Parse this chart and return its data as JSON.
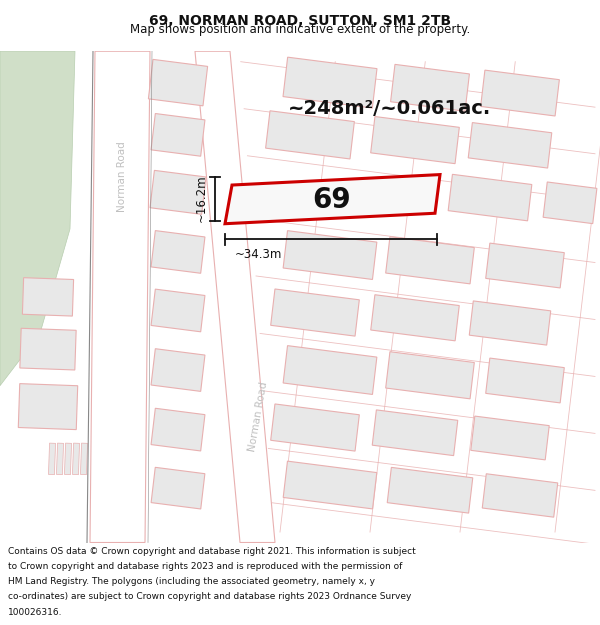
{
  "title": "69, NORMAN ROAD, SUTTON, SM1 2TB",
  "subtitle": "Map shows position and indicative extent of the property.",
  "area_text": "~248m²/~0.061ac.",
  "property_number": "69",
  "width_label": "~34.3m",
  "height_label": "~16.2m",
  "footer_lines": [
    "Contains OS data © Crown copyright and database right 2021. This information is subject",
    "to Crown copyright and database rights 2023 and is reproduced with the permission of",
    "HM Land Registry. The polygons (including the associated geometry, namely x, y",
    "co-ordinates) are subject to Crown copyright and database rights 2023 Ordnance Survey",
    "100026316."
  ],
  "map_bg": "#ffffff",
  "road_fill": "#ffffff",
  "road_stroke": "#e8b0b0",
  "block_fill": "#e8e8e8",
  "block_stroke": "#e8b0b0",
  "property_stroke": "#cc0000",
  "property_fill": "#f8f8f8",
  "green_fill": "#d0dfc8",
  "green_stroke": "#b8ceb0",
  "dim_color": "#111111",
  "road_label_color": "#c0c0c0",
  "text_color": "#111111",
  "footer_color": "#111111",
  "title_fontsize": 10,
  "subtitle_fontsize": 8.5,
  "area_fontsize": 14,
  "prop_num_fontsize": 20,
  "dim_fontsize": 8.5,
  "road_label_fontsize": 7.5,
  "footer_fontsize": 6.5
}
